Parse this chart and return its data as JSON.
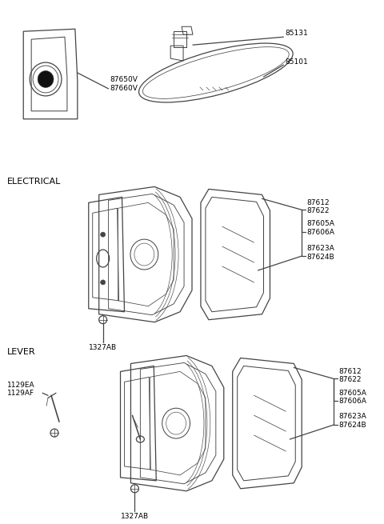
{
  "bg_color": "#ffffff",
  "line_color": "#444444",
  "text_color": "#000000",
  "fig_width": 4.8,
  "fig_height": 6.55,
  "dpi": 100,
  "labels": {
    "top_left_part": "87650V\n87660V",
    "top_right_part1": "85131",
    "top_right_part2": "85101",
    "electrical_header": "ELECTRICAL",
    "elec_label1": "87612\n87622",
    "elec_label2": "87605A\n87606A",
    "elec_label3": "87623A\n87624B",
    "elec_label4": "1327AB",
    "lever_header": "LEVER",
    "lever_label1": "87612\n87622",
    "lever_label2": "87605A\n87606A",
    "lever_label3": "87623A\n87624B",
    "lever_label4": "1327AB",
    "lever_label5": "1129EA\n1129AF"
  },
  "font_size_header": 8,
  "font_size_label": 6.5
}
